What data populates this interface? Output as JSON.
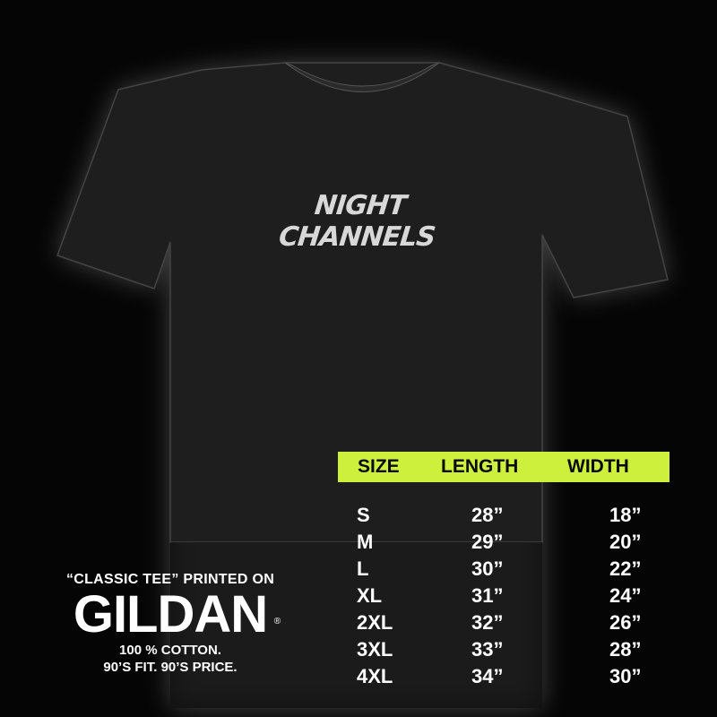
{
  "shirt": {
    "print": "NIGHT CHANNELS",
    "color": "#1c1c1c"
  },
  "size_chart": {
    "header_color": "#ccf03c",
    "headers": [
      "SIZE",
      "LENGTH",
      "WIDTH"
    ],
    "rows": [
      [
        "S",
        "28”",
        "18”"
      ],
      [
        "M",
        "29”",
        "20”"
      ],
      [
        "L",
        "30”",
        "22”"
      ],
      [
        "XL",
        "31”",
        "24”"
      ],
      [
        "2XL",
        "32”",
        "26”"
      ],
      [
        "3XL",
        "33”",
        "28”"
      ],
      [
        "4XL",
        "34”",
        "30”"
      ]
    ]
  },
  "info": {
    "line1": "“CLASSIC TEE” PRINTED ON",
    "logo": "GILDAN",
    "registered": "®",
    "line2": "100 % COTTON.",
    "line3": "90’S FIT. 90’S PRICE."
  }
}
